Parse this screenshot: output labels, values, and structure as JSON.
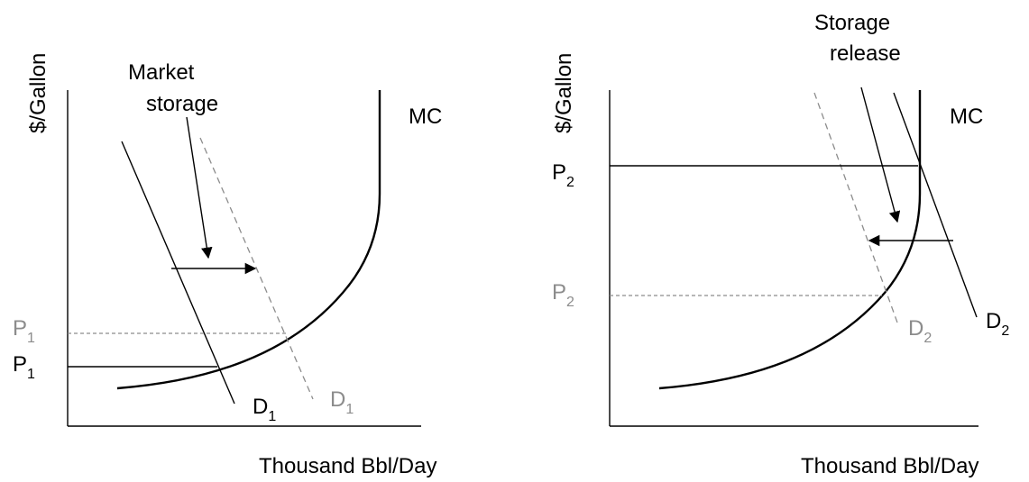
{
  "left_panel": {
    "y_axis_label": "$/Gallon",
    "x_axis_label": "Thousand Bbl/Day",
    "mc_label": "MC",
    "annotation_line1": "Market",
    "annotation_line2": "storage",
    "price_high": {
      "base": "P",
      "sub": "1"
    },
    "price_low": {
      "base": "P",
      "sub": "1"
    },
    "demand_original": {
      "base": "D",
      "sub": "1"
    },
    "demand_shifted": {
      "base": "D",
      "sub": "1"
    }
  },
  "right_panel": {
    "y_axis_label": "$/Gallon",
    "x_axis_label": "Thousand Bbl/Day",
    "mc_label": "MC",
    "annotation_line1": "Storage",
    "annotation_line2": "release",
    "price_high": {
      "base": "P",
      "sub": "2"
    },
    "price_low": {
      "base": "P",
      "sub": "2"
    },
    "demand_original": {
      "base": "D",
      "sub": "2"
    },
    "demand_shifted": {
      "base": "D",
      "sub": "2"
    }
  },
  "colors": {
    "primary": "#000000",
    "shifted": "#8c8c8c",
    "background": "#ffffff"
  }
}
